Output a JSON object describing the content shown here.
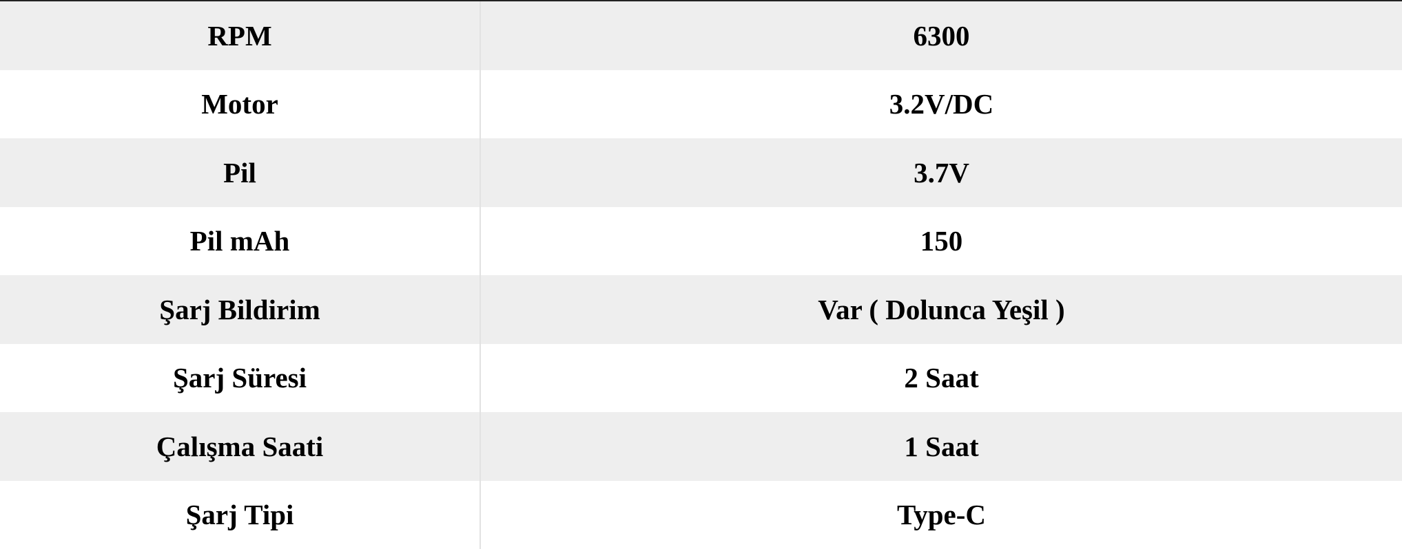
{
  "rows": [
    {
      "label": "RPM",
      "value": "6300"
    },
    {
      "label": "Motor",
      "value": "3.2V/DC"
    },
    {
      "label": "Pil",
      "value": "3.7V"
    },
    {
      "label": "Pil mAh",
      "value": "150"
    },
    {
      "label": "Şarj Bildirim",
      "value": "Var ( Dolunca Yeşil )"
    },
    {
      "label": "Şarj Süresi",
      "value": "2 Saat"
    },
    {
      "label": "Çalışma Saati",
      "value": "1 Saat"
    },
    {
      "label": "Şarj Tipi",
      "value": "Type-C"
    }
  ],
  "colors": {
    "row_alt": "#eeeeee",
    "row_plain": "#ffffff",
    "text": "#000000"
  }
}
